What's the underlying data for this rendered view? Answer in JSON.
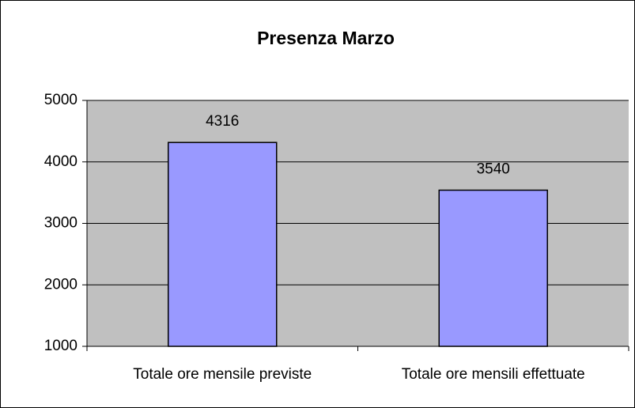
{
  "chart_data": {
    "type": "bar",
    "title": "Presenza Marzo",
    "categories": [
      "Totale ore mensile previste",
      "Totale ore mensili effettuate"
    ],
    "values": [
      4316,
      3540
    ],
    "color": "#9999ff",
    "ylim": [
      1000,
      5000
    ],
    "yticks": [
      1000,
      2000,
      3000,
      4000,
      5000
    ],
    "grid": true
  }
}
